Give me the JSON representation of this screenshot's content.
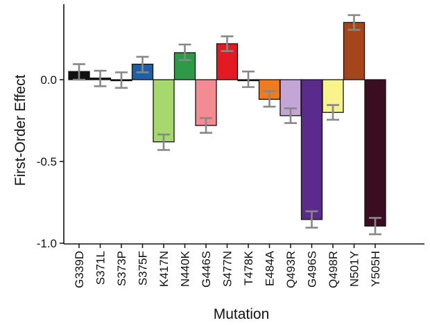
{
  "chart_data": {
    "type": "bar",
    "title": "",
    "xlabel": "Mutation",
    "ylabel": "First-Order Effect",
    "ylim": [
      -1.0,
      0.45
    ],
    "yticks": [
      0.0,
      -0.5,
      -1.0
    ],
    "ytick_labels": [
      "0.0",
      "-0.5",
      "-1.0"
    ],
    "grid": false,
    "legend": "none",
    "categories": [
      "G339D",
      "S371L",
      "S373P",
      "S375F",
      "K417N",
      "N440K",
      "G446S",
      "S477N",
      "T478K",
      "E484A",
      "Q493R",
      "G496S",
      "Q498R",
      "N501Y",
      "Y505H"
    ],
    "values": [
      0.05,
      0.01,
      -0.005,
      0.095,
      -0.38,
      0.165,
      -0.28,
      0.22,
      0.0,
      -0.12,
      -0.22,
      -0.855,
      -0.2,
      0.35,
      -0.895
    ],
    "error_low": [
      0.0,
      -0.04,
      -0.05,
      0.045,
      -0.43,
      0.12,
      -0.325,
      0.175,
      -0.045,
      -0.165,
      -0.265,
      -0.905,
      -0.245,
      0.305,
      -0.945
    ],
    "error_high": [
      0.095,
      0.055,
      0.045,
      0.14,
      -0.335,
      0.215,
      -0.235,
      0.265,
      0.05,
      -0.07,
      -0.175,
      -0.805,
      -0.155,
      0.395,
      -0.845
    ],
    "colors": [
      "#111111",
      "#111111",
      "#111111",
      "#1f5fa8",
      "#a6d86e",
      "#2e9a48",
      "#f28b92",
      "#e31a24",
      "#111111",
      "#f07a1e",
      "#c3a6d6",
      "#5b2b8c",
      "#f8f38a",
      "#a4451c",
      "#3b0d20"
    ],
    "error_bar_color": "#888888"
  }
}
